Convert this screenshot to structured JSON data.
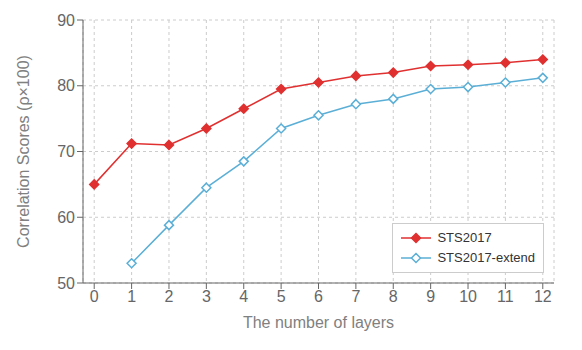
{
  "chart_data": {
    "type": "line",
    "x": [
      0,
      1,
      2,
      3,
      4,
      5,
      6,
      7,
      8,
      9,
      10,
      11,
      12
    ],
    "series": [
      {
        "name": "STS2017",
        "color": "#e03030",
        "marker": "diamond",
        "values": [
          65.0,
          71.2,
          71.0,
          73.5,
          76.5,
          79.5,
          80.5,
          81.5,
          82.0,
          83.0,
          83.2,
          83.5,
          84.0
        ]
      },
      {
        "name": "STS2017-extend",
        "color": "#5bafd6",
        "marker": "open_diamond",
        "values": [
          null,
          53.0,
          58.8,
          64.5,
          68.5,
          73.5,
          75.5,
          77.2,
          78.0,
          79.5,
          79.8,
          80.5,
          81.2
        ]
      }
    ],
    "xlabel": "The number of layers",
    "ylabel": "Correlation Scores (ρ×100)",
    "xlim": [
      -0.3,
      12.3
    ],
    "ylim": [
      50,
      90
    ],
    "xticks": [
      0,
      1,
      2,
      3,
      4,
      5,
      6,
      7,
      8,
      9,
      10,
      11,
      12
    ],
    "yticks": [
      50,
      60,
      70,
      80,
      90
    ],
    "grid": true,
    "legend": "lower right"
  }
}
